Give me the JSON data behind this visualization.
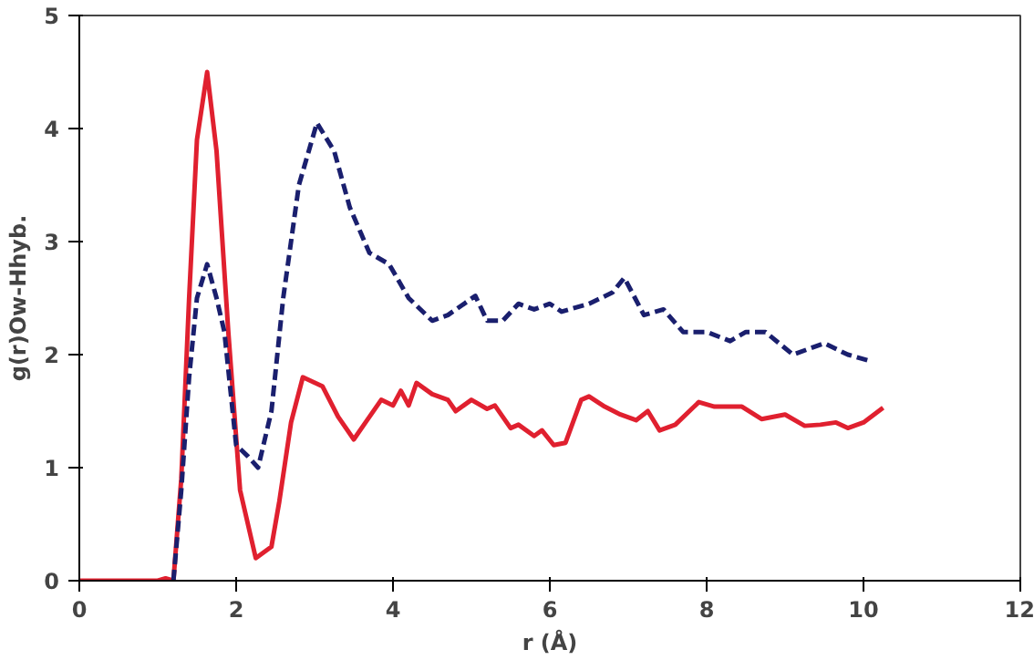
{
  "chart_data": {
    "type": "line",
    "xlabel": "r (Å)",
    "ylabel": "g(r)Ow-Hhyb.",
    "xlim": [
      0,
      12
    ],
    "ylim": [
      0,
      5
    ],
    "xticks": [
      0,
      2,
      4,
      6,
      8,
      10,
      12
    ],
    "yticks": [
      0,
      1,
      2,
      3,
      4,
      5
    ],
    "grid": false,
    "series": [
      {
        "color": "#e0202f",
        "line_style": "solid",
        "x": [
          0,
          0.5,
          1.0,
          1.1,
          1.2,
          1.3,
          1.4,
          1.5,
          1.63,
          1.75,
          1.9,
          2.05,
          2.25,
          2.45,
          2.55,
          2.7,
          2.85,
          3.1,
          3.3,
          3.5,
          3.65,
          3.85,
          4.0,
          4.1,
          4.2,
          4.3,
          4.5,
          4.7,
          4.8,
          5.0,
          5.2,
          5.3,
          5.5,
          5.6,
          5.8,
          5.9,
          6.05,
          6.2,
          6.4,
          6.5,
          6.7,
          6.9,
          7.1,
          7.25,
          7.4,
          7.6,
          7.9,
          8.1,
          8.45,
          8.7,
          9.0,
          9.25,
          9.45,
          9.65,
          9.8,
          10.0,
          10.25
        ],
        "values": [
          0,
          0,
          0,
          0.02,
          0,
          0.9,
          2.5,
          3.9,
          4.5,
          3.8,
          2.2,
          0.8,
          0.2,
          0.3,
          0.7,
          1.4,
          1.8,
          1.72,
          1.45,
          1.25,
          1.4,
          1.6,
          1.55,
          1.68,
          1.55,
          1.75,
          1.65,
          1.6,
          1.5,
          1.6,
          1.52,
          1.55,
          1.35,
          1.38,
          1.28,
          1.33,
          1.2,
          1.22,
          1.6,
          1.63,
          1.54,
          1.47,
          1.42,
          1.5,
          1.33,
          1.38,
          1.58,
          1.54,
          1.54,
          1.43,
          1.47,
          1.37,
          1.38,
          1.4,
          1.35,
          1.4,
          1.53
        ]
      },
      {
        "color": "#1a1f6e",
        "line_style": "dashed",
        "x": [
          1.2,
          1.3,
          1.4,
          1.5,
          1.63,
          1.75,
          1.85,
          2.0,
          2.15,
          2.28,
          2.45,
          2.6,
          2.8,
          3.03,
          3.25,
          3.45,
          3.7,
          3.95,
          4.2,
          4.5,
          4.7,
          5.05,
          5.2,
          5.4,
          5.6,
          5.8,
          6.0,
          6.15,
          6.5,
          6.8,
          6.95,
          7.2,
          7.45,
          7.7,
          8.0,
          8.3,
          8.5,
          8.75,
          9.1,
          9.3,
          9.5,
          9.8,
          10.05
        ],
        "values": [
          0,
          0.8,
          1.8,
          2.5,
          2.8,
          2.5,
          2.2,
          1.2,
          1.1,
          1.0,
          1.5,
          2.5,
          3.5,
          4.05,
          3.8,
          3.3,
          2.9,
          2.8,
          2.5,
          2.3,
          2.35,
          2.52,
          2.3,
          2.3,
          2.45,
          2.4,
          2.45,
          2.38,
          2.45,
          2.55,
          2.68,
          2.35,
          2.4,
          2.2,
          2.2,
          2.12,
          2.2,
          2.2,
          2.0,
          2.05,
          2.1,
          2.0,
          1.95
        ]
      }
    ]
  }
}
